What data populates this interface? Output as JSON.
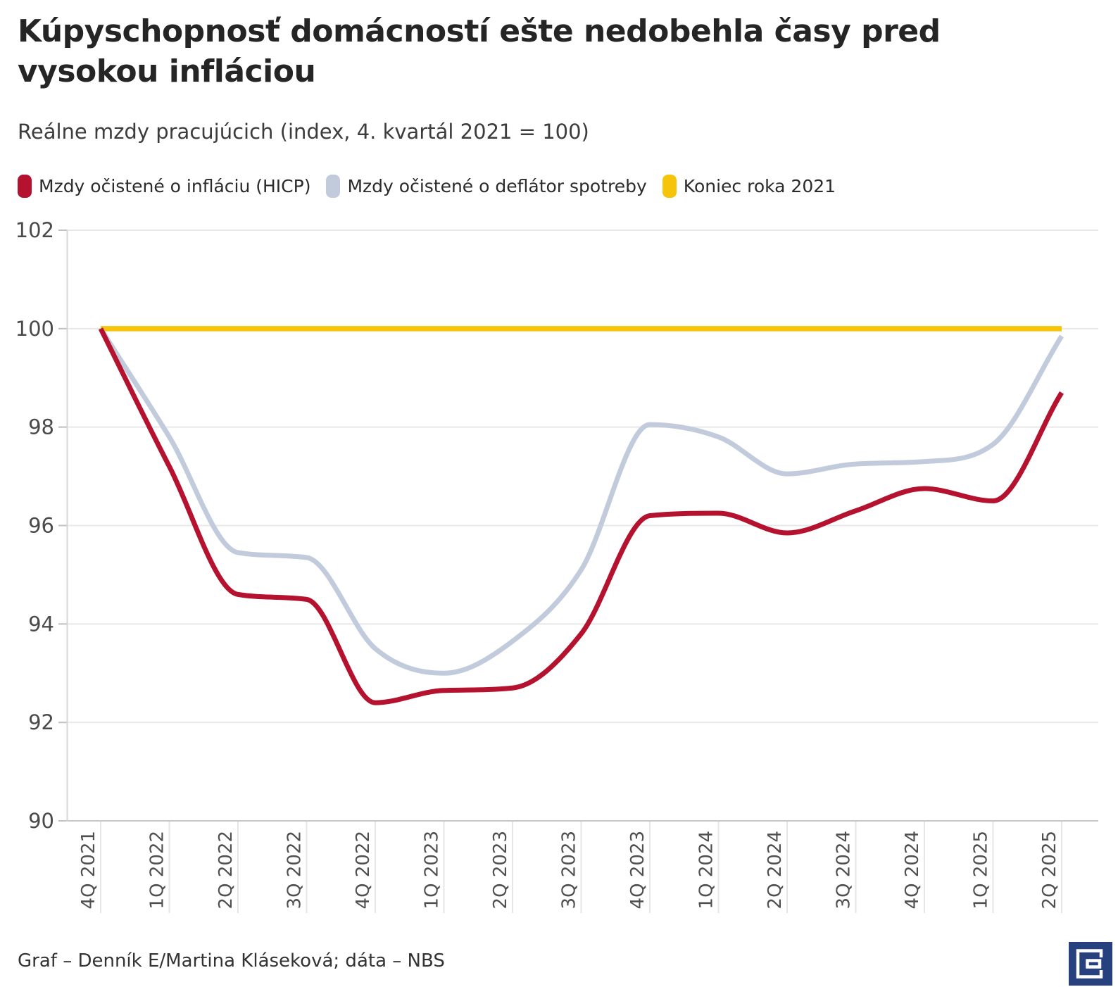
{
  "header": {
    "title_lines": [
      "Kúpyschopnosť domácností ešte nedobehla časy pred",
      "vysokou infláciou"
    ],
    "subtitle": "Reálne mzdy pracujúcich (index, 4. kvartál 2021 = 100)"
  },
  "legend": {
    "items": [
      {
        "label": "Mzdy očistené o infláciu (HICP)",
        "color": "#b5122f"
      },
      {
        "label": "Mzdy očistené o deflátor spotreby",
        "color": "#c2cbdc"
      },
      {
        "label": "Koniec roka 2021",
        "color": "#f6c40a"
      }
    ]
  },
  "chart_data": {
    "type": "line",
    "title": "Kúpyschopnosť domácností ešte nedobehla časy pred vysokou infláciou",
    "subtitle": "Reálne mzdy pracujúcich (index, 4. kvartál 2021 = 100)",
    "categories": [
      "4Q 2021",
      "1Q 2022",
      "2Q 2022",
      "3Q 2022",
      "4Q 2022",
      "1Q 2023",
      "2Q 2023",
      "3Q 2023",
      "4Q 2023",
      "1Q 2024",
      "2Q 2024",
      "3Q 2024",
      "4Q 2024",
      "1Q 2025",
      "2Q 2025"
    ],
    "series": [
      {
        "name": "Mzdy očistené o infláciu (HICP)",
        "color": "#b5122f",
        "values": [
          100,
          97.2,
          94.6,
          94.5,
          92.4,
          92.65,
          92.7,
          93.8,
          96.2,
          96.25,
          95.85,
          96.3,
          96.75,
          96.5,
          98.7
        ]
      },
      {
        "name": "Mzdy očistené o deflátor spotreby",
        "color": "#c2cbdc",
        "values": [
          100,
          97.8,
          95.45,
          95.35,
          93.5,
          93.0,
          93.65,
          95.1,
          98.05,
          97.8,
          97.05,
          97.25,
          97.3,
          97.65,
          99.85
        ]
      }
    ],
    "reference_line": {
      "name": "Koniec roka 2021",
      "color": "#f6c40a",
      "value": 100
    },
    "xlabel": "",
    "ylabel": "",
    "ylim": [
      90,
      102
    ],
    "yticks": [
      90,
      92,
      94,
      96,
      98,
      100,
      102
    ],
    "grid": "horizontal",
    "legend_position": "top",
    "curve": "monotone",
    "x_tick_rotation": -90
  },
  "footer": {
    "credit": "Graf – Denník E/Martina Kláseková; dáta – NBS",
    "logo": "Denník E"
  }
}
